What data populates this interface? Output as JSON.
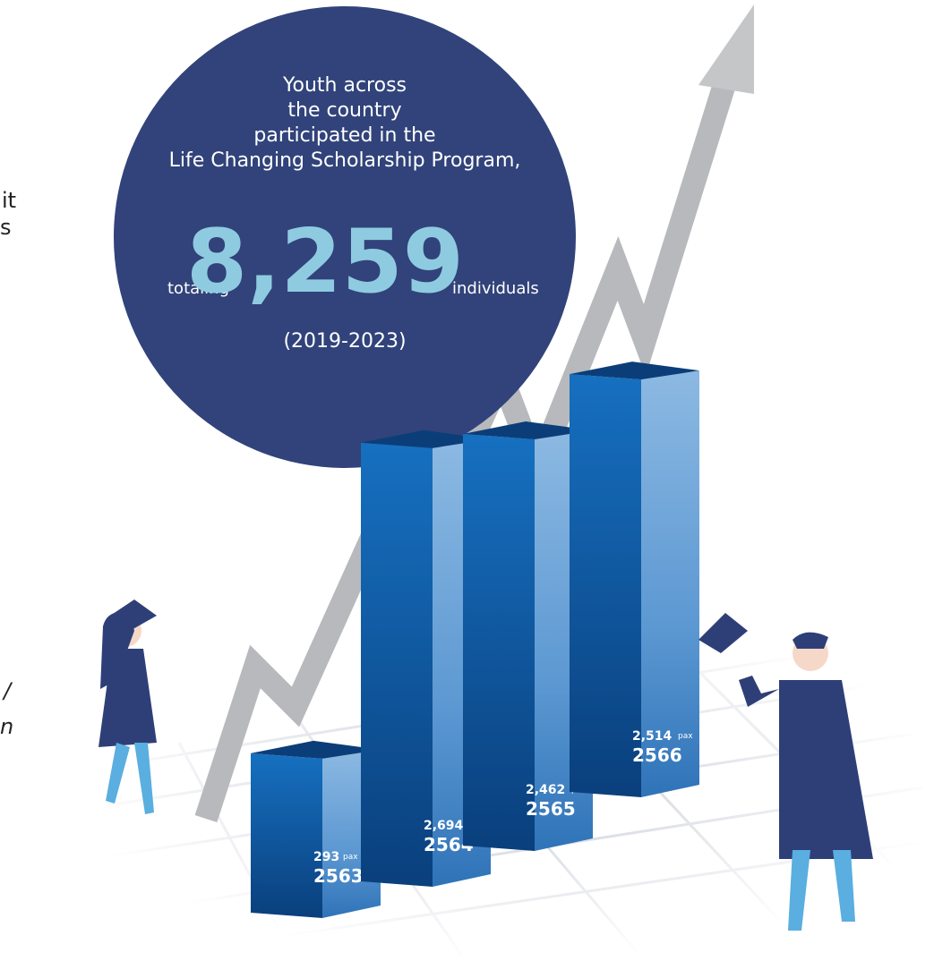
{
  "chart_data": {
    "type": "bar",
    "categories": [
      "2563",
      "2564",
      "2565",
      "2566"
    ],
    "values": [
      293,
      2694,
      2462,
      2514
    ],
    "value_labels": [
      "293",
      "2,694",
      "2,462",
      "2,514"
    ],
    "unit": "pax",
    "color": "#0f5fae",
    "headline": [
      "Youth across",
      "the country",
      "participated in the",
      "Life Changing Scholarship Program,"
    ],
    "total_prefix": "totaling",
    "total": 8259,
    "total_label": "8,259",
    "total_suffix": "individuals",
    "period": "(2019-2023)",
    "clipped_text": [
      "it",
      "s",
      "/",
      "n"
    ]
  }
}
